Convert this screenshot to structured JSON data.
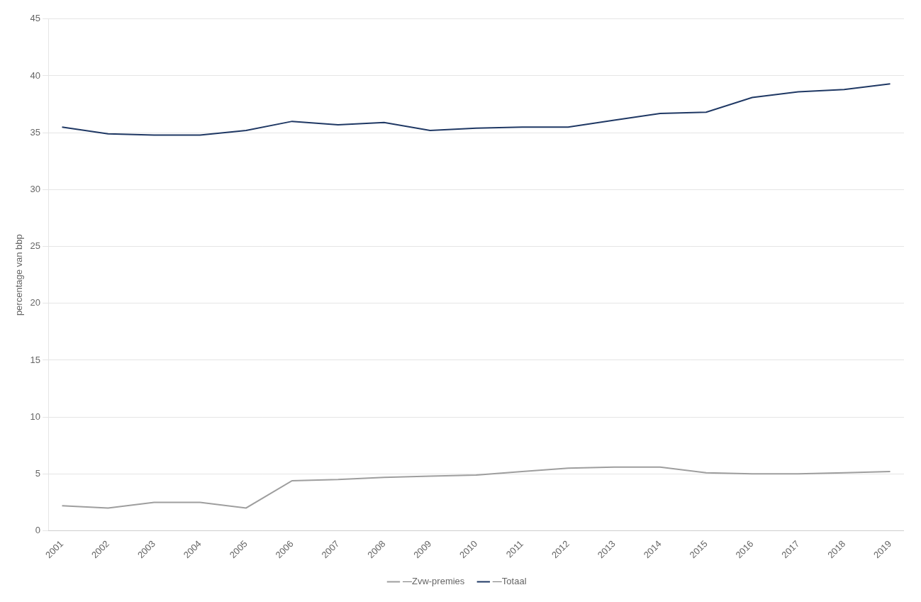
{
  "chart_data": {
    "type": "line",
    "x": [
      2001,
      2002,
      2003,
      2004,
      2005,
      2006,
      2007,
      2008,
      2009,
      2010,
      2011,
      2012,
      2013,
      2014,
      2015,
      2016,
      2017,
      2018,
      2019
    ],
    "series": [
      {
        "name": "—Zvw-premies",
        "color": "#9E9E9E",
        "values": [
          2.2,
          2.0,
          2.5,
          2.5,
          2.0,
          4.4,
          4.5,
          4.7,
          4.8,
          4.9,
          5.2,
          5.5,
          5.6,
          5.6,
          5.1,
          5.0,
          5.0,
          5.1,
          5.2
        ]
      },
      {
        "name": "—Totaal",
        "color": "#1F3864",
        "values": [
          35.5,
          34.9,
          34.8,
          34.8,
          35.2,
          36.0,
          35.7,
          35.9,
          35.2,
          35.4,
          35.5,
          35.5,
          36.1,
          36.7,
          36.8,
          38.1,
          38.6,
          38.8,
          39.3
        ]
      }
    ],
    "ylabel": "percentage van bbp",
    "xlim": [
      2000.7,
      2019.3
    ],
    "xticks": [
      2001,
      2002,
      2003,
      2004,
      2005,
      2006,
      2007,
      2008,
      2009,
      2010,
      2011,
      2012,
      2013,
      2014,
      2015,
      2016,
      2017,
      2018,
      2019
    ],
    "ylim": [
      0,
      45
    ],
    "yticks": [
      0,
      5,
      10,
      15,
      20,
      25,
      30,
      35,
      40,
      45
    ],
    "grid": true,
    "legend": "bottom"
  }
}
